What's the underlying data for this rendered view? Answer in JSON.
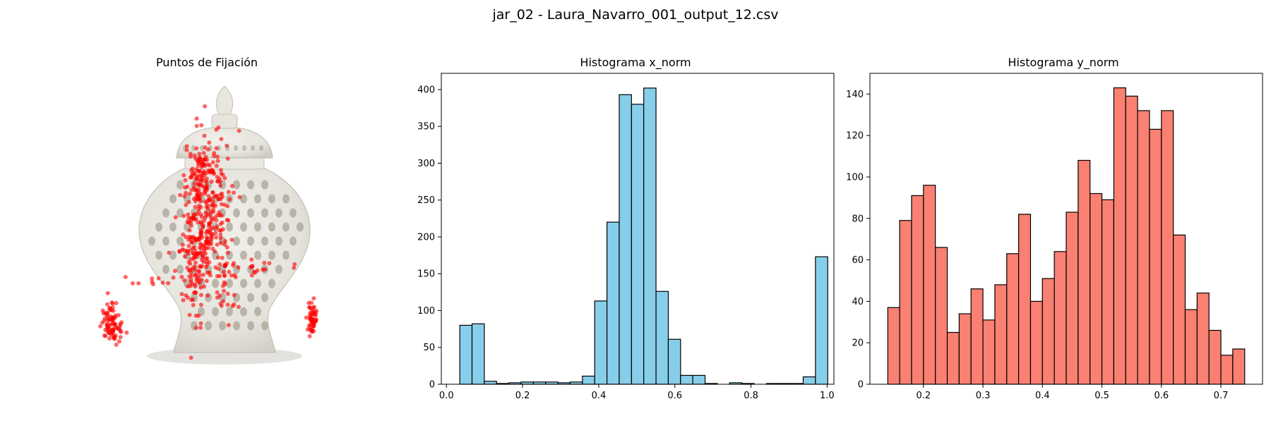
{
  "figure": {
    "suptitle": "jar_02 - Laura_Navarro_001_output_12.csv"
  },
  "panels": {
    "image_panel": {
      "title": "Puntos de Fijación",
      "colors": {
        "point": "#ff0000",
        "vase_body": "#e4e2db",
        "vase_shadow": "#c9c6bd",
        "hole": "#a8a496"
      }
    }
  },
  "chart_data": [
    {
      "type": "bar",
      "title": "Histograma x_norm",
      "xlabel": "",
      "ylabel": "",
      "bin_width": 0.03222,
      "bin_starts": [
        0.035,
        0.0672,
        0.0994,
        0.1317,
        0.1639,
        0.1961,
        0.2283,
        0.2606,
        0.2928,
        0.325,
        0.3572,
        0.3894,
        0.4217,
        0.4539,
        0.4861,
        0.5183,
        0.5506,
        0.5828,
        0.615,
        0.6472,
        0.6794,
        0.7117,
        0.7439,
        0.7761,
        0.8083,
        0.8406,
        0.8728,
        0.905,
        0.9372,
        0.9694
      ],
      "values": [
        80,
        82,
        4,
        1,
        2,
        3,
        3,
        3,
        2,
        3,
        11,
        113,
        220,
        393,
        380,
        402,
        126,
        61,
        12,
        12,
        1,
        0,
        2,
        1,
        0,
        1,
        1,
        1,
        10,
        173
      ],
      "xlim": [
        -0.0135,
        1.0179
      ],
      "ylim": [
        0,
        422
      ],
      "xticks": [
        "0.0",
        "0.2",
        "0.4",
        "0.6",
        "0.8",
        "1.0"
      ],
      "xtick_values": [
        0.0,
        0.2,
        0.4,
        0.6,
        0.8,
        1.0
      ],
      "yticks": [
        "0",
        "50",
        "100",
        "150",
        "200",
        "250",
        "300",
        "350",
        "400"
      ],
      "ytick_values": [
        0,
        50,
        100,
        150,
        200,
        250,
        300,
        350,
        400
      ],
      "grid": false,
      "colors": {
        "fill": "#87ceeb",
        "edge": "#000000"
      }
    },
    {
      "type": "bar",
      "title": "Histograma y_norm",
      "xlabel": "",
      "ylabel": "",
      "bin_width": 0.02,
      "bin_starts": [
        0.14,
        0.16,
        0.18,
        0.2,
        0.22,
        0.24,
        0.26,
        0.28,
        0.3,
        0.32,
        0.34,
        0.36,
        0.38,
        0.4,
        0.42,
        0.44,
        0.46,
        0.48,
        0.5,
        0.52,
        0.54,
        0.56,
        0.58,
        0.6,
        0.62,
        0.64,
        0.66,
        0.68,
        0.7,
        0.72
      ],
      "values": [
        37,
        79,
        91,
        96,
        66,
        25,
        34,
        46,
        31,
        48,
        63,
        82,
        40,
        51,
        64,
        83,
        108,
        92,
        89,
        143,
        139,
        132,
        123,
        132,
        72,
        36,
        44,
        26,
        14,
        17
      ],
      "xlim": [
        0.11,
        0.77
      ],
      "ylim": [
        0,
        150
      ],
      "xticks": [
        "0.2",
        "0.3",
        "0.4",
        "0.5",
        "0.6",
        "0.7"
      ],
      "xtick_values": [
        0.2,
        0.3,
        0.4,
        0.5,
        0.6,
        0.7
      ],
      "yticks": [
        "0",
        "20",
        "40",
        "60",
        "80",
        "100",
        "120",
        "140"
      ],
      "ytick_values": [
        0,
        20,
        40,
        60,
        80,
        100,
        120,
        140
      ],
      "grid": false,
      "colors": {
        "fill": "#fa8072",
        "edge": "#000000"
      }
    }
  ]
}
